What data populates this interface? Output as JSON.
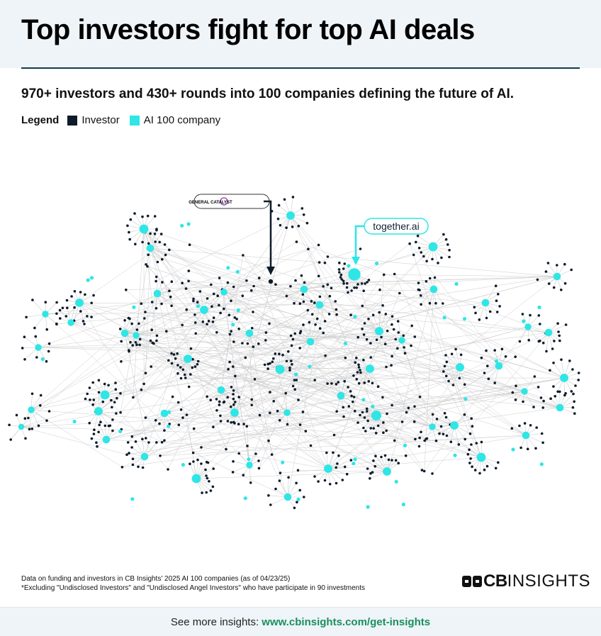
{
  "title": "Top investors fight for top AI deals",
  "subtitle": "970+ investors and 430+ rounds into 100 companies defining the future of AI.",
  "legend": {
    "title": "Legend",
    "items": [
      {
        "label": "Investor",
        "color": "#0d1b2a"
      },
      {
        "label": "AI 100 company",
        "color": "#2ee6e6"
      }
    ]
  },
  "colors": {
    "investor": "#0d1b2a",
    "company": "#2ee6e6",
    "edge": "#cccccc",
    "link": "#1a8f5e"
  },
  "callouts": {
    "investor": {
      "text": "GENERAL CATALYST",
      "icon": "general-catalyst-logo-icon"
    },
    "company": {
      "text": "together.ai"
    }
  },
  "footnotes": [
    "Data on funding and investors in CB Insights' 2025 AI 100 companies (as of 04/23/25)",
    "*Excluding \"Undisclosed Investors\" and \"Undisclosed Angel Investors\" who have participate in 90 investments"
  ],
  "brand": {
    "bold": "CB",
    "light": "INSIGHTS",
    "icon": "cb-logo-icon"
  },
  "footer": {
    "prefix": "See more insights: ",
    "link": "www.cbinsights.com/get-insights"
  }
}
